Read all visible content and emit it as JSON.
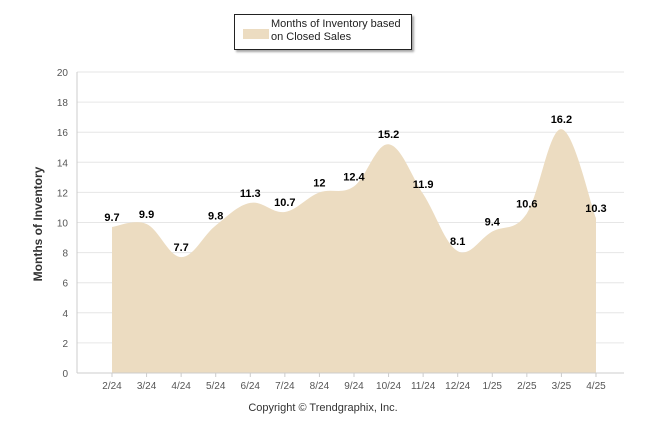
{
  "legend_label": "Months of Inventory based on Closed Sales",
  "copyright": "Copyright © Trendgraphix, Inc.",
  "colors": {
    "area_fill": "#ecdcc1",
    "grid": "#e6e6e6",
    "axis": "#cccccc",
    "label": "#000000",
    "tick_text": "#555555"
  },
  "chart_data": {
    "type": "area",
    "title": "",
    "xlabel": "",
    "ylabel": "Months of Inventory",
    "categories": [
      "2/24",
      "3/24",
      "4/24",
      "5/24",
      "6/24",
      "7/24",
      "8/24",
      "9/24",
      "10/24",
      "11/24",
      "12/24",
      "1/25",
      "2/25",
      "3/25",
      "4/25"
    ],
    "series": [
      {
        "name": "Months of Inventory based on Closed Sales",
        "values": [
          9.7,
          9.9,
          7.7,
          9.8,
          11.3,
          10.7,
          12,
          12.4,
          15.2,
          11.9,
          8.1,
          9.4,
          10.6,
          16.2,
          10.3
        ],
        "labels": [
          "9.7",
          "9.9",
          "7.7",
          "9.8",
          "11.3",
          "10.7",
          "12",
          "12.4",
          "15.2",
          "11.9",
          "8.1",
          "9.4",
          "10.6",
          "16.2",
          "10.3"
        ]
      }
    ],
    "ylim": [
      0,
      20
    ],
    "yticks": [
      0,
      2,
      4,
      6,
      8,
      10,
      12,
      14,
      16,
      18,
      20
    ],
    "grid": true,
    "legend": "top-center"
  }
}
